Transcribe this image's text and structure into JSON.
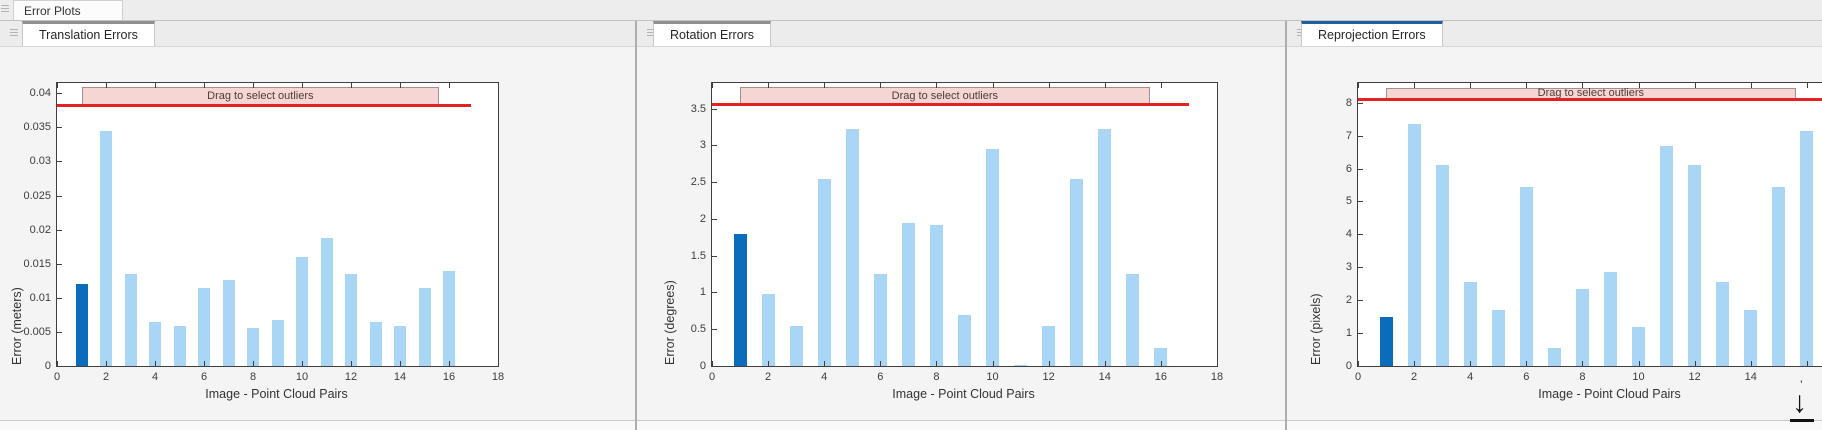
{
  "app_tab": {
    "label": "Error Plots"
  },
  "panels": [
    {
      "tab": "Translation Errors",
      "accent_color": "#8f8f8f"
    },
    {
      "tab": "Rotation Errors",
      "accent_color": "#8f8f8f"
    },
    {
      "tab": "Reprojection Errors",
      "accent_color": "#1d5e9e"
    }
  ],
  "colors": {
    "bar": "#a9d6f5",
    "bar_selected": "#0b6cbb",
    "threshold_line": "#e32222",
    "band_fill": "#f6d6d4",
    "band_border": "#a68f8b",
    "axis": "#3f3f3f"
  },
  "cursor_icon": {
    "name": "down-arrow-cursor",
    "glyph": "↓"
  },
  "chart_data": [
    {
      "type": "bar",
      "title": "Translation Errors",
      "xlabel": "Image - Point Cloud Pairs",
      "ylabel": "Error (meters)",
      "x": [
        1,
        2,
        3,
        4,
        5,
        6,
        7,
        8,
        9,
        10,
        11,
        12,
        13,
        14,
        15,
        16
      ],
      "values": [
        0.012,
        0.0345,
        0.0135,
        0.0065,
        0.0058,
        0.0115,
        0.0126,
        0.0056,
        0.0067,
        0.016,
        0.0188,
        0.0135,
        0.0065,
        0.0058,
        0.0115,
        0.014
      ],
      "highlight_index": 0,
      "threshold_line": 0.0383,
      "threshold_line_x_end": 16.9,
      "outlier_band": {
        "label": "Drag to select outliers",
        "x_start": 1.0,
        "x_end": 15.6,
        "y_top": 0.0409
      },
      "xlim": [
        0,
        18
      ],
      "ylim": [
        0,
        0.0415
      ],
      "xticks": [
        0,
        2,
        4,
        6,
        8,
        10,
        12,
        14,
        16,
        18
      ],
      "xtick_labels": [
        "0",
        "2",
        "4",
        "6",
        "8",
        "10",
        "12",
        "14",
        "16",
        "18"
      ],
      "yticks": [
        "0",
        "0.005",
        "0.01",
        "0.015",
        "0.02",
        "0.025",
        "0.03",
        "0.035",
        "0.04"
      ],
      "grid": false,
      "legend": "none"
    },
    {
      "type": "bar",
      "title": "Rotation Errors",
      "xlabel": "Image - Point Cloud Pairs",
      "ylabel": "Error (degrees)",
      "x": [
        1,
        2,
        3,
        4,
        5,
        6,
        7,
        8,
        9,
        10,
        11,
        12,
        13,
        14,
        15,
        16
      ],
      "values": [
        1.8,
        0.98,
        0.55,
        2.55,
        3.22,
        1.25,
        1.95,
        1.92,
        0.7,
        2.95,
        0.02,
        0.55,
        2.55,
        3.22,
        1.25,
        0.25
      ],
      "highlight_index": 0,
      "threshold_line": 3.56,
      "threshold_line_x_end": 17.0,
      "outlier_band": {
        "label": "Drag to select outliers",
        "x_start": 1.0,
        "x_end": 15.6,
        "y_top": 3.79
      },
      "xlim": [
        0,
        18
      ],
      "ylim": [
        0,
        3.85
      ],
      "xticks": [
        0,
        2,
        4,
        6,
        8,
        10,
        12,
        14,
        16,
        18
      ],
      "xtick_labels": [
        "0",
        "2",
        "4",
        "6",
        "8",
        "10",
        "12",
        "14",
        "16",
        "18"
      ],
      "yticks": [
        "0",
        "0.5",
        "1",
        "1.5",
        "2",
        "2.5",
        "3",
        "3.5"
      ],
      "grid": false,
      "legend": "none"
    },
    {
      "type": "bar",
      "title": "Reprojection Errors",
      "xlabel": "Image - Point Cloud Pairs",
      "ylabel": "Error (pixels)",
      "x": [
        1,
        2,
        3,
        4,
        5,
        6,
        7,
        8,
        9,
        10,
        11,
        12,
        13,
        14,
        15,
        16
      ],
      "values": [
        1.5,
        7.35,
        6.1,
        2.55,
        1.7,
        5.45,
        0.55,
        2.35,
        2.85,
        1.2,
        6.7,
        6.1,
        2.55,
        1.7,
        5.45,
        7.15
      ],
      "highlight_index": 0,
      "threshold_line": 8.12,
      "threshold_line_x_end": 18.2,
      "outlier_band": {
        "label": "Drag to select outliers",
        "x_start": 1.0,
        "x_end": 15.6,
        "y_top": 8.46
      },
      "xlim": [
        0,
        18
      ],
      "ylim": [
        0,
        8.6
      ],
      "xticks": [
        0,
        2,
        4,
        6,
        8,
        10,
        12,
        14,
        16
      ],
      "xtick_labels": [
        "0",
        "2",
        "4",
        "6",
        "8",
        "10",
        "12",
        "14",
        ""
      ],
      "yticks": [
        "0",
        "1",
        "2",
        "3",
        "4",
        "5",
        "6",
        "7",
        "8"
      ],
      "grid": false,
      "legend": "none",
      "clipped_right": true
    }
  ]
}
